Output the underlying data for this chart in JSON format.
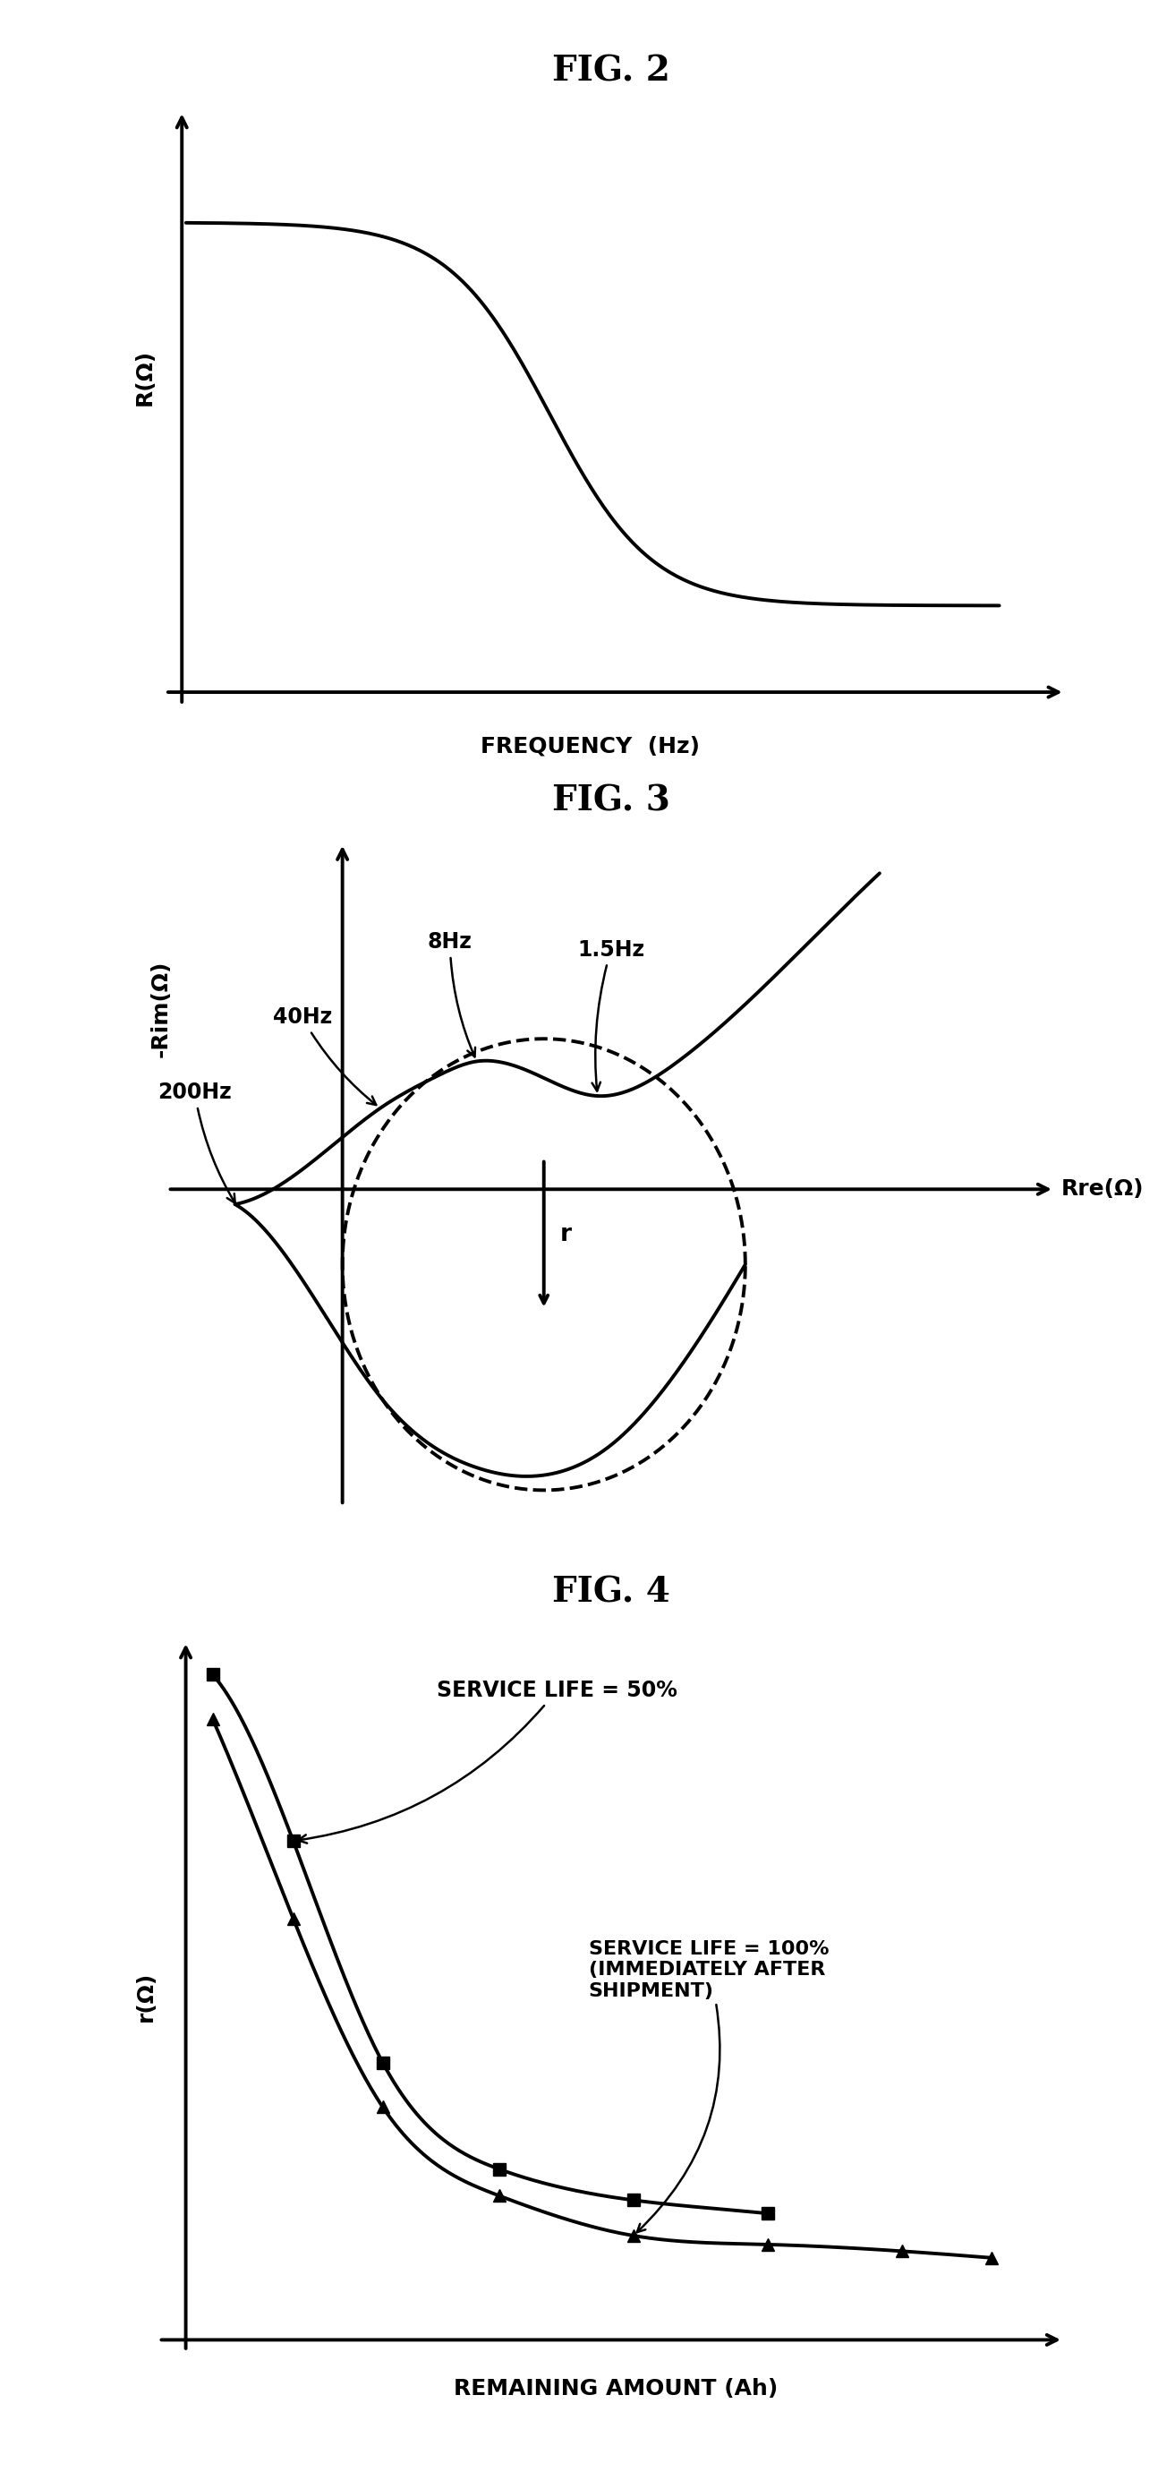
{
  "fig2_title": "FIG. 2",
  "fig3_title": "FIG. 3",
  "fig4_title": "FIG. 4",
  "fig2_xlabel": "FREQUENCY  (Hz)",
  "fig2_ylabel": "R(Ω)",
  "fig3_xlabel": "Rre(Ω)",
  "fig3_ylabel": "-Rim(Ω)",
  "fig4_xlabel": "REMAINING AMOUNT (Ah)",
  "fig4_ylabel": "r(Ω)",
  "fig4_label_50": "SERVICE LIFE = 50%",
  "fig4_label_100": "SERVICE LIFE = 100%\n(IMMEDIATELY AFTER\nSHIPMENT)",
  "bg_color": "#ffffff",
  "line_color": "#000000",
  "title_fontsize": 28,
  "axis_label_fontsize": 18,
  "annotation_fontsize": 17
}
